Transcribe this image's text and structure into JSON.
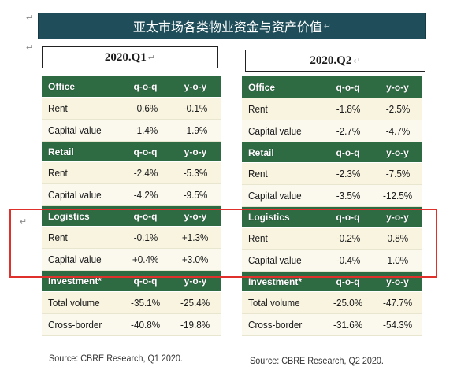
{
  "para_mark": "↵",
  "title": "亚太市场各类物业资金与资产价值",
  "source_q1": "Source: CBRE Research, Q1 2020.",
  "source_q2": "Source: CBRE Research, Q2 2020.",
  "q1": {
    "label": "2020.Q1",
    "sections": [
      {
        "name": "Office",
        "col1": "q-o-q",
        "col2": "y-o-y",
        "rows": [
          {
            "label": "Rent",
            "qoq": "-0.6%",
            "yoy": "-0.1%"
          },
          {
            "label": "Capital value",
            "qoq": "-1.4%",
            "yoy": "-1.9%"
          }
        ]
      },
      {
        "name": "Retail",
        "col1": "q-o-q",
        "col2": "y-o-y",
        "rows": [
          {
            "label": "Rent",
            "qoq": "-2.4%",
            "yoy": "-5.3%"
          },
          {
            "label": "Capital value",
            "qoq": "-4.2%",
            "yoy": "-9.5%"
          }
        ]
      },
      {
        "name": "Logistics",
        "col1": "q-o-q",
        "col2": "y-o-y",
        "rows": [
          {
            "label": "Rent",
            "qoq": "-0.1%",
            "yoy": "+1.3%"
          },
          {
            "label": "Capital value",
            "qoq": "+0.4%",
            "yoy": "+3.0%"
          }
        ]
      },
      {
        "name": "Investment*",
        "col1": "q-o-q",
        "col2": "y-o-y",
        "rows": [
          {
            "label": "Total volume",
            "qoq": "-35.1%",
            "yoy": "-25.4%"
          },
          {
            "label": "Cross-border",
            "qoq": "-40.8%",
            "yoy": "-19.8%"
          }
        ]
      }
    ]
  },
  "q2": {
    "label": "2020.Q2",
    "sections": [
      {
        "name": "Office",
        "col1": "q-o-q",
        "col2": "y-o-y",
        "rows": [
          {
            "label": "Rent",
            "qoq": "-1.8%",
            "yoy": "-2.5%"
          },
          {
            "label": "Capital value",
            "qoq": "-2.7%",
            "yoy": "-4.7%"
          }
        ]
      },
      {
        "name": "Retail",
        "col1": "q-o-q",
        "col2": "y-o-y",
        "rows": [
          {
            "label": "Rent",
            "qoq": "-2.3%",
            "yoy": "-7.5%"
          },
          {
            "label": "Capital value",
            "qoq": "-3.5%",
            "yoy": "-12.5%"
          }
        ]
      },
      {
        "name": "Logistics",
        "col1": "q-o-q",
        "col2": "y-o-y",
        "rows": [
          {
            "label": "Rent",
            "qoq": "-0.2%",
            "yoy": "0.8%"
          },
          {
            "label": "Capital value",
            "qoq": "-0.4%",
            "yoy": "1.0%"
          }
        ]
      },
      {
        "name": "Investment*",
        "col1": "q-o-q",
        "col2": "y-o-y",
        "rows": [
          {
            "label": "Total volume",
            "qoq": "-25.0%",
            "yoy": "-47.7%"
          },
          {
            "label": "Cross-border",
            "qoq": "-31.6%",
            "yoy": "-54.3%"
          }
        ]
      }
    ]
  }
}
